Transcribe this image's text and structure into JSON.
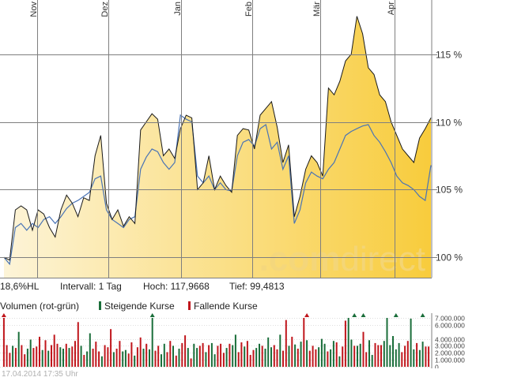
{
  "colors": {
    "price_line": "#1a1a1a",
    "benchmark_line": "#4a74b5",
    "fill_light": "#fdf4d8",
    "fill_dark": "#f8cc3c",
    "rising": "#1a6e3a",
    "falling": "#c0161c",
    "grid": "#7f7f7f",
    "footer": "#b0b0b0"
  },
  "stats": {
    "hl": "18,6%HL",
    "interval": "Intervall: 1 Tag",
    "high": "Hoch: 117,9668",
    "low": "Tief: 99,4813"
  },
  "legend": {
    "volume_label": "Volumen (rot-grün)",
    "rising_label": "Steigende Kurse",
    "falling_label": "Fallende Kurse"
  },
  "watermark": {
    "dot_part": ".com",
    "rest_part": "direct"
  },
  "footer": {
    "timestamp": "17.04.2014 17:35 Uhr"
  },
  "chart_data": [
    {
      "type": "area",
      "categories": [
        "Nov",
        "Dez",
        "Jan",
        "Feb",
        "Mär",
        "Apr"
      ],
      "y_ticks": [
        100,
        105,
        110,
        115
      ],
      "y_tick_labels": [
        "100 %",
        "105 %",
        "110 %",
        "115 %"
      ],
      "ylim": [
        98.5,
        119
      ],
      "grid": true,
      "series": [
        {
          "type": "area",
          "x": [
            0,
            2,
            4,
            6,
            8,
            10,
            12,
            14,
            16,
            18,
            20,
            22,
            24,
            26,
            28,
            30,
            32,
            34,
            36,
            38,
            40,
            42,
            44,
            46,
            48,
            50,
            52,
            54,
            56,
            58,
            60,
            62,
            64,
            66,
            68,
            70,
            72,
            74,
            76,
            78,
            80,
            82,
            84,
            86,
            88,
            90,
            92,
            94,
            96,
            98,
            100,
            102,
            104,
            106,
            108,
            110,
            112,
            114,
            116,
            118,
            120,
            122,
            124,
            126,
            128,
            130,
            132,
            134,
            136,
            138,
            140,
            142,
            144,
            146,
            148,
            150
          ],
          "values": [
            100.0,
            99.8,
            103.5,
            103.8,
            103.5,
            102.0,
            103.5,
            103.2,
            102.2,
            101.5,
            103.5,
            104.6,
            104.0,
            103.0,
            104.4,
            104.2,
            107.5,
            109.0,
            104.0,
            102.8,
            103.5,
            102.3,
            103.0,
            102.5,
            109.4,
            110.0,
            110.6,
            110.2,
            107.5,
            108.0,
            107.3,
            109.5,
            110.5,
            110.3,
            105.0,
            105.5,
            107.5,
            105.0,
            106.0,
            105.3,
            104.8,
            109.0,
            109.5,
            109.4,
            108.0,
            110.5,
            111.0,
            111.5,
            109.6,
            107.0,
            108.3,
            103.0,
            104.5,
            106.5,
            107.5,
            107.0,
            106.0,
            112.5,
            112.0,
            113.0,
            114.5,
            115.0,
            117.8,
            116.5,
            114.0,
            113.5,
            112.0,
            111.5,
            110.0,
            109.0,
            108.0,
            107.5,
            107.0,
            108.8,
            109.5,
            110.3
          ]
        },
        {
          "type": "line",
          "x": [
            0,
            2,
            4,
            6,
            8,
            10,
            12,
            14,
            16,
            18,
            20,
            22,
            24,
            26,
            28,
            30,
            32,
            34,
            36,
            38,
            40,
            42,
            44,
            46,
            48,
            50,
            52,
            54,
            56,
            58,
            60,
            62,
            64,
            66,
            68,
            70,
            72,
            74,
            76,
            78,
            80,
            82,
            84,
            86,
            88,
            90,
            92,
            94,
            96,
            98,
            100,
            102,
            104,
            106,
            108,
            110,
            112,
            114,
            116,
            118,
            120,
            122,
            124,
            126,
            128,
            130,
            132,
            134,
            136,
            138,
            140,
            142,
            144,
            146,
            148,
            150
          ],
          "values": [
            100.0,
            99.5,
            102.2,
            102.5,
            102.0,
            102.5,
            102.2,
            102.8,
            103.0,
            102.5,
            103.0,
            103.6,
            104.0,
            104.2,
            104.5,
            104.8,
            105.8,
            106.0,
            103.5,
            102.8,
            102.5,
            102.2,
            102.8,
            103.0,
            106.5,
            107.4,
            108.0,
            107.8,
            107.0,
            106.5,
            107.0,
            110.5,
            110.2,
            110.0,
            106.0,
            105.5,
            106.0,
            105.0,
            105.5,
            105.0,
            104.9,
            107.5,
            108.5,
            108.7,
            108.2,
            109.5,
            109.8,
            108.0,
            108.5,
            106.5,
            107.5,
            102.5,
            103.5,
            105.5,
            106.3,
            106.0,
            105.8,
            106.5,
            107.0,
            108.0,
            109.0,
            109.3,
            109.5,
            109.7,
            109.8,
            109.0,
            108.5,
            107.8,
            107.0,
            106.0,
            105.5,
            105.3,
            105.0,
            104.5,
            104.2,
            106.8
          ]
        }
      ]
    },
    {
      "type": "bar",
      "y_ticks": [
        0,
        1000000,
        2000000,
        3000000,
        4000000,
        6000000,
        7000000
      ],
      "y_tick_labels": [
        "0",
        "1.000.000",
        "2.000.000",
        "3.000.000",
        "4.000.000",
        "6.000.000",
        "7.000.000"
      ],
      "ylim": [
        0,
        7000000
      ],
      "grid": true,
      "values": [
        7000000,
        3100000,
        2000000,
        3000000,
        2700000,
        5000000,
        3100000,
        1800000,
        2600000,
        3900000,
        2700000,
        2900000,
        4300000,
        2400000,
        3800000,
        2300000,
        3100000,
        4600000,
        3300000,
        2800000,
        2600000,
        3300000,
        2700000,
        2900000,
        3700000,
        6400000,
        3000000,
        1700000,
        2200000,
        4800000,
        2600000,
        3600000,
        2200000,
        1500000,
        3100000,
        2800000,
        5400000,
        2100000,
        2600000,
        3700000,
        2200000,
        2400000,
        1900000,
        3500000,
        1600000,
        2800000,
        4200000,
        2600000,
        3300000,
        2500000,
        7000000,
        2300000,
        3000000,
        1800000,
        3300000,
        2100000,
        3700000,
        3000000,
        1600000,
        2600000,
        3400000,
        4500000,
        2700000,
        1200000,
        3300000,
        2700000,
        3000000,
        3400000,
        2100000,
        3100000,
        3400000,
        1800000,
        3000000,
        3300000,
        2000000,
        2700000,
        3300000,
        3100000,
        4600000,
        2100000,
        3500000,
        2900000,
        3700000,
        1700000,
        2400000,
        2700000,
        3300000,
        3000000,
        2600000,
        4200000,
        2800000,
        3100000,
        2500000,
        4600000,
        2300000,
        6700000,
        3000000,
        4300000,
        3200000,
        2600000,
        3600000,
        7000000,
        3800000,
        2300000,
        3000000,
        2500000,
        2800000,
        4000000,
        3300000,
        2200000,
        2500000,
        3700000,
        3500000,
        1500000,
        2900000,
        6600000,
        7000000,
        3900000,
        3000000,
        3000000,
        3300000,
        5000000,
        2100000,
        3800000,
        1700000,
        3400000,
        3100000,
        3100000,
        3700000,
        7000000,
        3100000,
        4400000,
        2500000,
        3400000,
        2100000,
        3000000,
        3700000,
        6900000,
        2500000,
        3400000,
        2400000,
        3600000,
        2900000,
        2900000
      ],
      "rising": [
        0,
        0,
        0,
        1,
        0,
        1,
        0,
        0,
        1,
        1,
        0,
        0,
        0,
        1,
        0,
        1,
        0,
        0,
        0,
        1,
        1,
        0,
        1,
        0,
        0,
        0,
        1,
        0,
        1,
        1,
        0,
        0,
        0,
        1,
        0,
        0,
        0,
        1,
        0,
        0,
        1,
        1,
        0,
        0,
        1,
        0,
        0,
        1,
        0,
        1,
        1,
        0,
        0,
        1,
        1,
        0,
        0,
        1,
        0,
        1,
        0,
        0,
        1,
        0,
        1,
        1,
        0,
        0,
        1,
        0,
        1,
        1,
        0,
        0,
        0,
        1,
        0,
        1,
        1,
        0,
        0,
        1,
        0,
        0,
        0,
        1,
        1,
        0,
        1,
        1,
        1,
        0,
        0,
        1,
        0,
        0,
        1,
        0,
        1,
        0,
        1,
        0,
        1,
        0,
        0,
        0,
        1,
        1,
        1,
        0,
        1,
        1,
        0,
        1,
        0,
        0,
        1,
        1,
        0,
        1,
        1,
        0,
        0,
        1,
        1,
        0,
        0,
        0,
        1,
        1,
        1,
        1,
        1,
        1,
        0,
        0,
        0,
        1,
        1,
        0,
        1,
        1,
        0,
        0,
        1,
        1
      ],
      "arrows": [
        {
          "index": 0,
          "direction": "up",
          "rising": false
        },
        {
          "index": 50,
          "direction": "up",
          "rising": true
        },
        {
          "index": 102,
          "direction": "up",
          "rising": false
        },
        {
          "index": 118,
          "direction": "up",
          "rising": true
        },
        {
          "index": 121,
          "direction": "up",
          "rising": true
        },
        {
          "index": 132,
          "direction": "up",
          "rising": true
        },
        {
          "index": 141,
          "direction": "up",
          "rising": true
        }
      ]
    }
  ]
}
